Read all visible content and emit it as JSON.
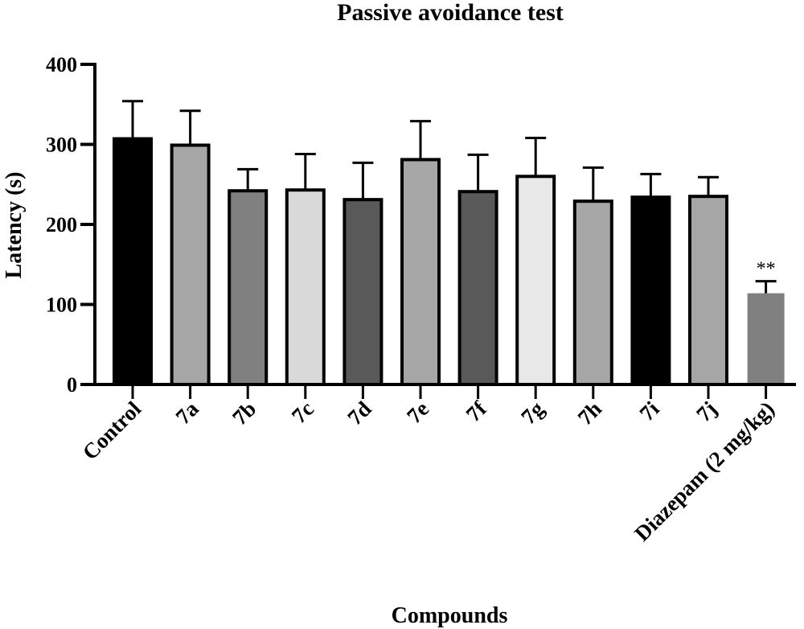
{
  "chart_data": {
    "type": "bar",
    "title": "Passive avoidance test",
    "xlabel": "Compounds",
    "ylabel": "Latency (s)",
    "ylim": [
      0,
      400
    ],
    "yticks": [
      "0",
      "100",
      "200",
      "300",
      "400"
    ],
    "grid": false,
    "categories": [
      "Control",
      "7a",
      "7b",
      "7c",
      "7d",
      "7e",
      "7f",
      "7g",
      "7h",
      "7i",
      "7j",
      "Diazepam (2 mg/kg)"
    ],
    "values": [
      307,
      299,
      242,
      243,
      231,
      281,
      241,
      260,
      229,
      234,
      235,
      114
    ],
    "errors": [
      47,
      43,
      27,
      45,
      46,
      48,
      46,
      48,
      42,
      29,
      24,
      15
    ],
    "colors": [
      "#000000",
      "#a6a6a6",
      "#808080",
      "#d9d9d9",
      "#595959",
      "#a6a6a6",
      "#595959",
      "#e8e8e8",
      "#a6a6a6",
      "#000000",
      "#a6a6a6",
      "#808080"
    ],
    "annotations": [
      {
        "category": "Diazepam (2 mg/kg)",
        "text": "**"
      }
    ]
  }
}
